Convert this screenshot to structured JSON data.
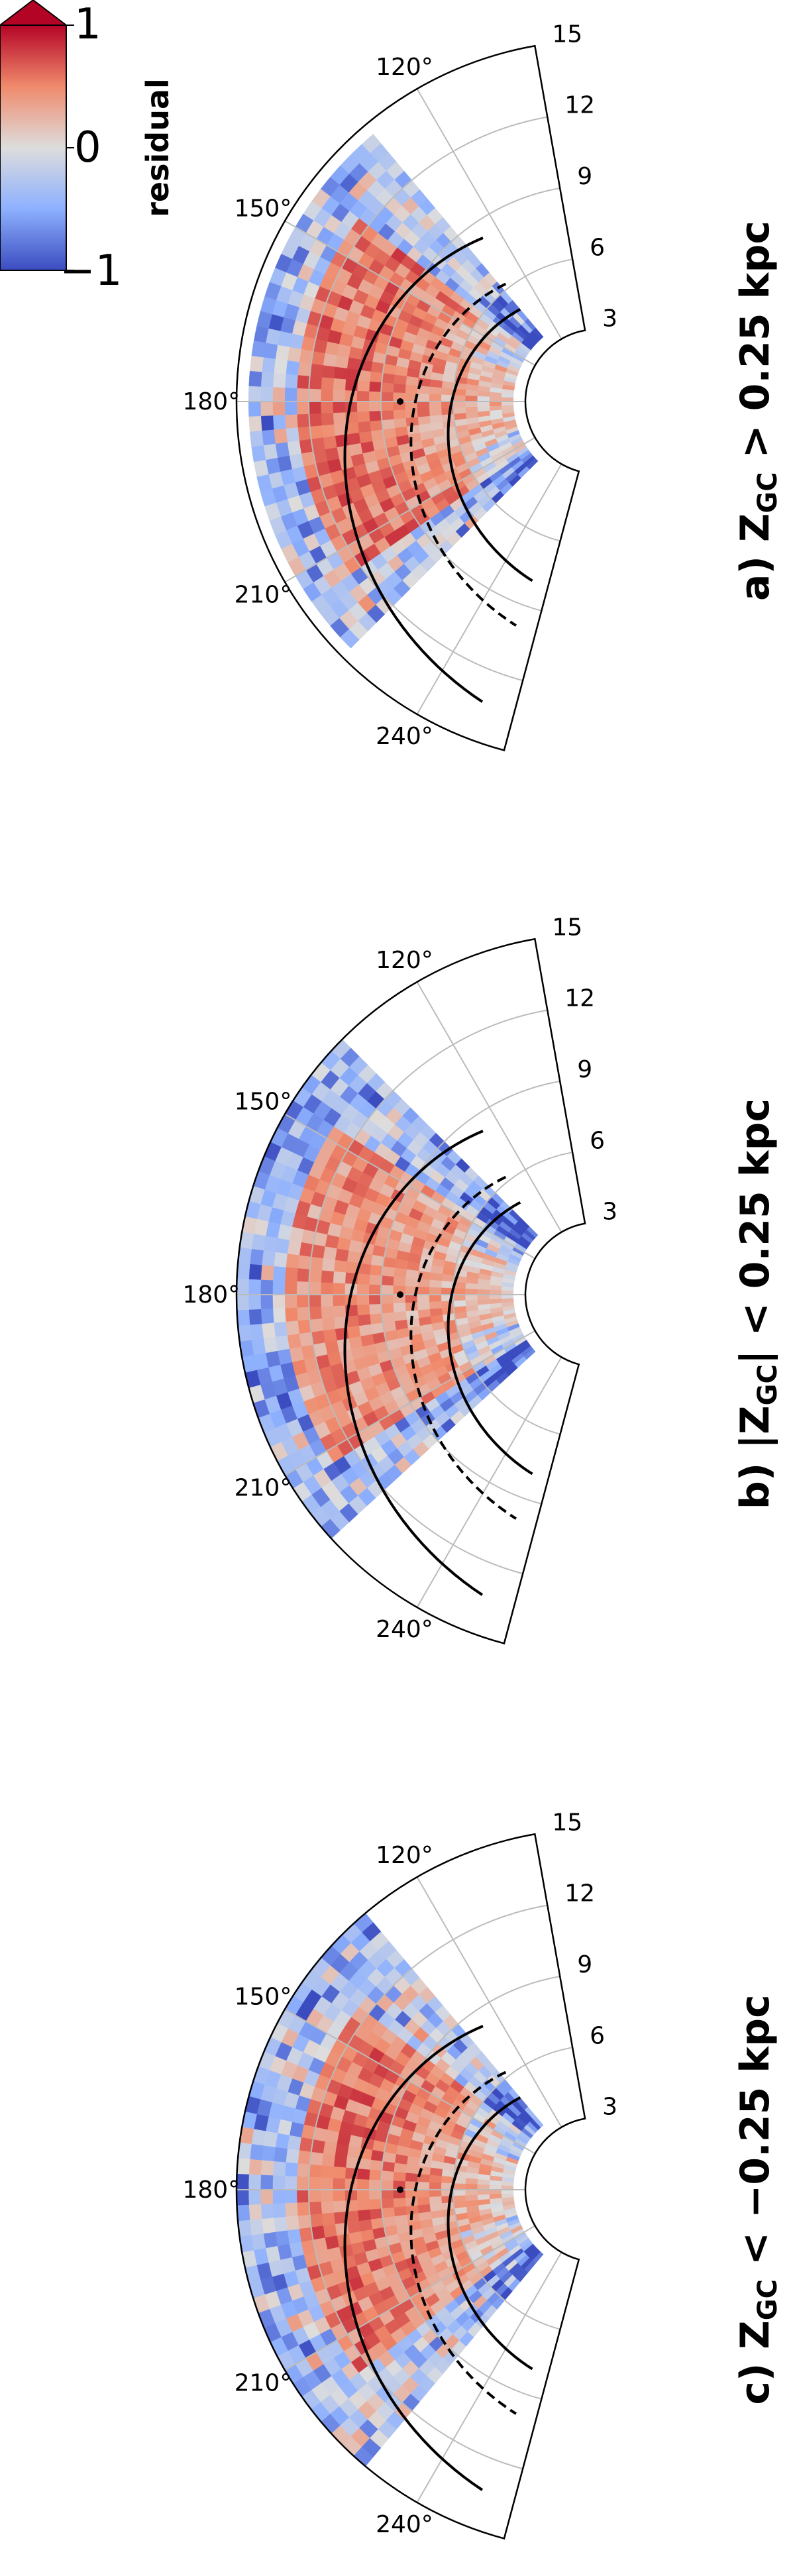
{
  "colorbar": {
    "label": "residual",
    "ticks": [
      "1",
      "0",
      "−1"
    ],
    "colors": {
      "high": "#b40426",
      "mid": "#dddddd",
      "low": "#3b4cc0",
      "extend": "#b40426"
    }
  },
  "chart_data": [
    {
      "type": "heatmap",
      "projection": "polar",
      "title": "a) Z_GC > 0.25 kpc",
      "title_parts": {
        "prefix": "a) ",
        "var": "Z",
        "sub": "GC",
        "rel": " > 0.25 kpc"
      },
      "theta_ticks": [
        "120°",
        "150°",
        "180°",
        "210°",
        "240°"
      ],
      "r_ticks": [
        "3",
        "6",
        "9",
        "12",
        "15"
      ],
      "theta_range": [
        100,
        255
      ],
      "r_range": [
        3,
        15
      ],
      "clim": [
        -1,
        1
      ],
      "grid": true,
      "seed": 11,
      "data_extent": {
        "r_min": 3.5,
        "r_max": 14.5,
        "theta_min": 130,
        "theta_max": 225
      },
      "bias": -0.05
    },
    {
      "type": "heatmap",
      "projection": "polar",
      "title": "b) |Z_GC| < 0.25 kpc",
      "title_parts": {
        "prefix": "b) |",
        "var": "Z",
        "sub": "GC",
        "rel": "| < 0.25 kpc"
      },
      "theta_ticks": [
        "120°",
        "150°",
        "180°",
        "210°",
        "240°"
      ],
      "r_ticks": [
        "3",
        "6",
        "9",
        "12",
        "15"
      ],
      "theta_range": [
        100,
        255
      ],
      "r_range": [
        3,
        15
      ],
      "clim": [
        -1,
        1
      ],
      "grid": true,
      "seed": 29,
      "data_extent": {
        "r_min": 3.5,
        "r_max": 15.0,
        "theta_min": 135,
        "theta_max": 222
      },
      "bias": -0.15
    },
    {
      "type": "heatmap",
      "projection": "polar",
      "title": "c) Z_GC < −0.25 kpc",
      "title_parts": {
        "prefix": "c) ",
        "var": "Z",
        "sub": "GC",
        "rel": " < −0.25 kpc"
      },
      "theta_ticks": [
        "120°",
        "150°",
        "180°",
        "210°",
        "240°"
      ],
      "r_ticks": [
        "3",
        "6",
        "9",
        "12",
        "15"
      ],
      "theta_range": [
        100,
        255
      ],
      "r_range": [
        3,
        15
      ],
      "clim": [
        -1,
        1
      ],
      "grid": true,
      "seed": 47,
      "data_extent": {
        "r_min": 3.5,
        "r_max": 14.8,
        "theta_min": 130,
        "theta_max": 228
      },
      "bias": -0.05
    }
  ]
}
